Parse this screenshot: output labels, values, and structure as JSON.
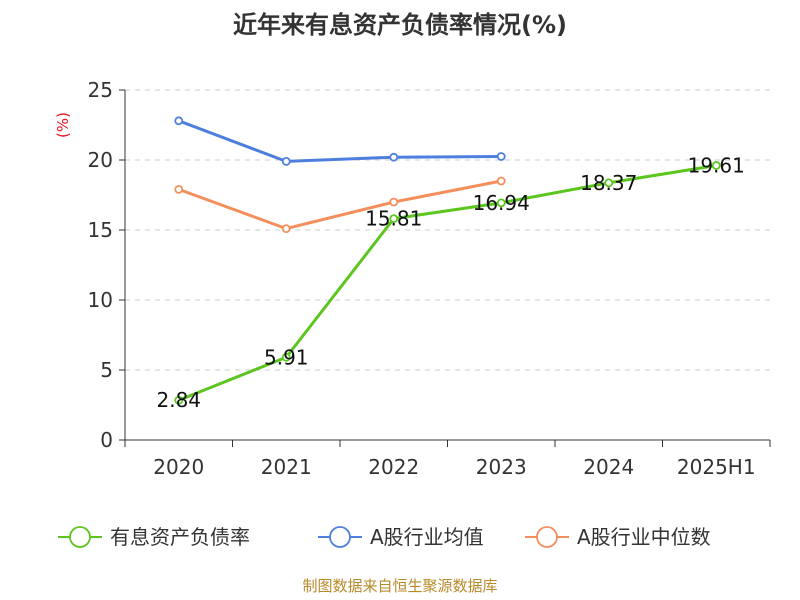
{
  "chart_data": {
    "type": "line",
    "title": "近年来有息资产负债率情况(%)",
    "ylabel": "(%)",
    "xlabel": "",
    "categories": [
      "2020",
      "2021",
      "2022",
      "2023",
      "2024",
      "2025H1"
    ],
    "ylim": [
      0,
      25
    ],
    "yticks": [
      0,
      5,
      10,
      15,
      20,
      25
    ],
    "grid": true,
    "legend_position": "bottom",
    "series": [
      {
        "name": "有息资产负债率",
        "color": "#5cc61f",
        "values": [
          2.84,
          5.91,
          15.81,
          16.94,
          18.37,
          19.61
        ],
        "labels": [
          "2.84",
          "5.91",
          "15.81",
          "16.94",
          "18.37",
          "19.61"
        ]
      },
      {
        "name": "A股行业均值",
        "color": "#4e7fdf",
        "values": [
          22.8,
          19.9,
          20.2,
          20.25,
          null,
          null
        ]
      },
      {
        "name": "A股行业中位数",
        "color": "#f48f5c",
        "values": [
          17.9,
          15.1,
          17.0,
          18.5,
          null,
          null
        ]
      }
    ]
  },
  "source": "制图数据来自恒生聚源数据库"
}
